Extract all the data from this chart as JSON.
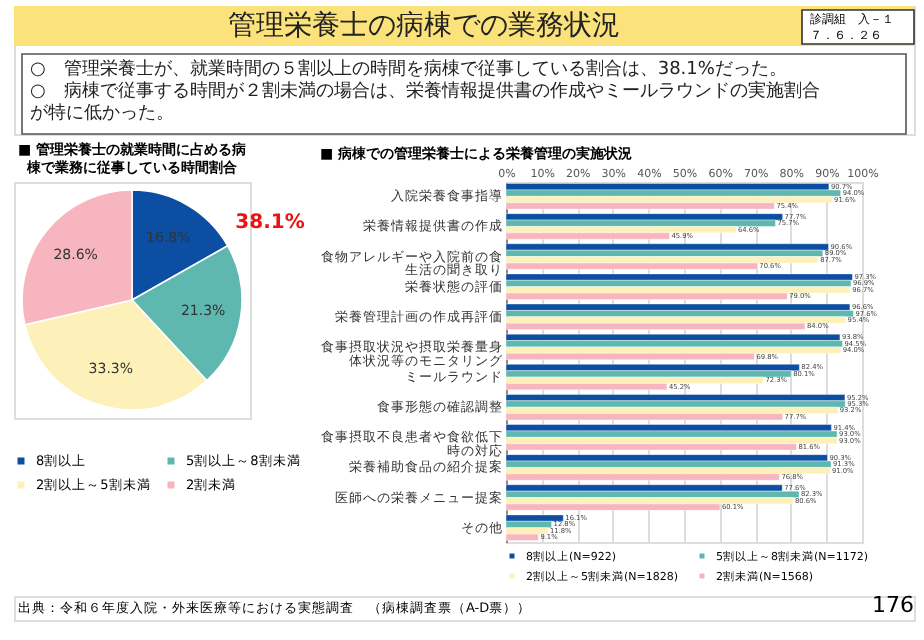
{
  "chart_data": [
    {
      "type": "pie",
      "title": "■ 管理栄養士の就業時間に占める病棟で業務に従事している時間割合",
      "categories": [
        "8割以上",
        "5割以上～8割未満",
        "2割以上～5割未満",
        "2割未満"
      ],
      "values": [
        16.8,
        21.3,
        33.3,
        28.6
      ],
      "colors": [
        "#0b4ea2",
        "#5fb8b0",
        "#fdf0b8",
        "#f7b6bf"
      ],
      "value_labels": [
        "16.8%",
        "21.3%",
        "33.3%",
        "28.6%"
      ],
      "legend": "bottom",
      "annotations": [
        "管理栄養士の病棟での業務状況",
        "診調組　入－１",
        "７．６．２６",
        "○　管理栄養士が、就業時間の５割以上の時間を病棟で従事している割合は、38.1%だった。",
        "○　病棟で従事する時間が２割未満の場合は、栄養情報提供書の作成やミールラウンドの実施割合が特に低かった。",
        "38.1%",
        "出典：令和６年度入院・外来医療等における実態調査　（病棟調査票（A-D票））",
        "176"
      ]
    },
    {
      "type": "bar",
      "orientation": "horizontal",
      "title": "■ 病棟での管理栄養士による栄養管理の実施状況",
      "categories": [
        "入院栄養食事指導",
        "栄養情報提供書の作成",
        "食物アレルギーや入院前の食生活の聞き取り",
        "栄養状態の評価",
        "栄養管理計画の作成再評価",
        "食事摂取状況や摂取栄養量身体状況等のモニタリング",
        "ミールラウンド",
        "食事形態の確認調整",
        "食事摂取不良患者や食欲低下時の対応",
        "栄養補助食品の紹介提案",
        "医師への栄養メニュー提案",
        "その他"
      ],
      "xlim": [
        0,
        100
      ],
      "xticks": [
        {
          "value": 0,
          "label": "0%"
        },
        {
          "value": 10,
          "label": "10%"
        },
        {
          "value": 20,
          "label": "20%"
        },
        {
          "value": 30,
          "label": "30%"
        },
        {
          "value": 40,
          "label": "40%"
        },
        {
          "value": 50,
          "label": "50%"
        },
        {
          "value": 60,
          "label": "60%"
        },
        {
          "value": 70,
          "label": "70%"
        },
        {
          "value": 80,
          "label": "80%"
        },
        {
          "value": 90,
          "label": "90%"
        },
        {
          "value": 100,
          "label": "100%"
        }
      ],
      "grid": "x",
      "legend": "bottom",
      "series": [
        {
          "name": "8割以上(N=922)",
          "color": "#0b4ea2",
          "values": [
            90.7,
            77.7,
            90.6,
            97.3,
            96.6,
            93.8,
            82.4,
            95.2,
            91.4,
            90.3,
            77.6,
            16.1
          ],
          "value_labels": [
            "90.7%",
            "77.7%",
            "90.6%",
            "97.3%",
            "96.6%",
            "93.8%",
            "82.4%",
            "95.2%",
            "91.4%",
            "90.3%",
            "77.6%",
            "16.1%"
          ]
        },
        {
          "name": "5割以上～8割未満(N=1172)",
          "color": "#5fb8b0",
          "values": [
            94.0,
            75.7,
            89.0,
            96.9,
            97.6,
            94.5,
            80.1,
            95.3,
            93.0,
            91.3,
            82.3,
            12.8
          ],
          "value_labels": [
            "94.0%",
            "75.7%",
            "89.0%",
            "96.9%",
            "97.6%",
            "94.5%",
            "80.1%",
            "95.3%",
            "93.0%",
            "91.3%",
            "82.3%",
            "12.8%"
          ]
        },
        {
          "name": "2割以上～5割未満(N=1828)",
          "color": "#fdf0b8",
          "values": [
            91.6,
            64.6,
            87.7,
            96.7,
            95.4,
            94.0,
            72.3,
            93.2,
            93.0,
            91.0,
            80.6,
            11.8
          ],
          "value_labels": [
            "91.6%",
            "64.6%",
            "87.7%",
            "96.7%",
            "95.4%",
            "94.0%",
            "72.3%",
            "93.2%",
            "93.0%",
            "91.0%",
            "80.6%",
            "11.8%"
          ]
        },
        {
          "name": "2割未満(N=1568)",
          "color": "#f7b6bf",
          "values": [
            75.4,
            45.9,
            70.6,
            79.0,
            84.0,
            69.8,
            45.2,
            77.7,
            81.6,
            76.8,
            60.1,
            9.1
          ],
          "value_labels": [
            "75.4%",
            "45.9%",
            "70.6%",
            "79.0%",
            "84.0%",
            "69.8%",
            "45.2%",
            "77.7%",
            "81.6%",
            "76.8%",
            "60.1%",
            "9.1%"
          ]
        }
      ]
    }
  ]
}
